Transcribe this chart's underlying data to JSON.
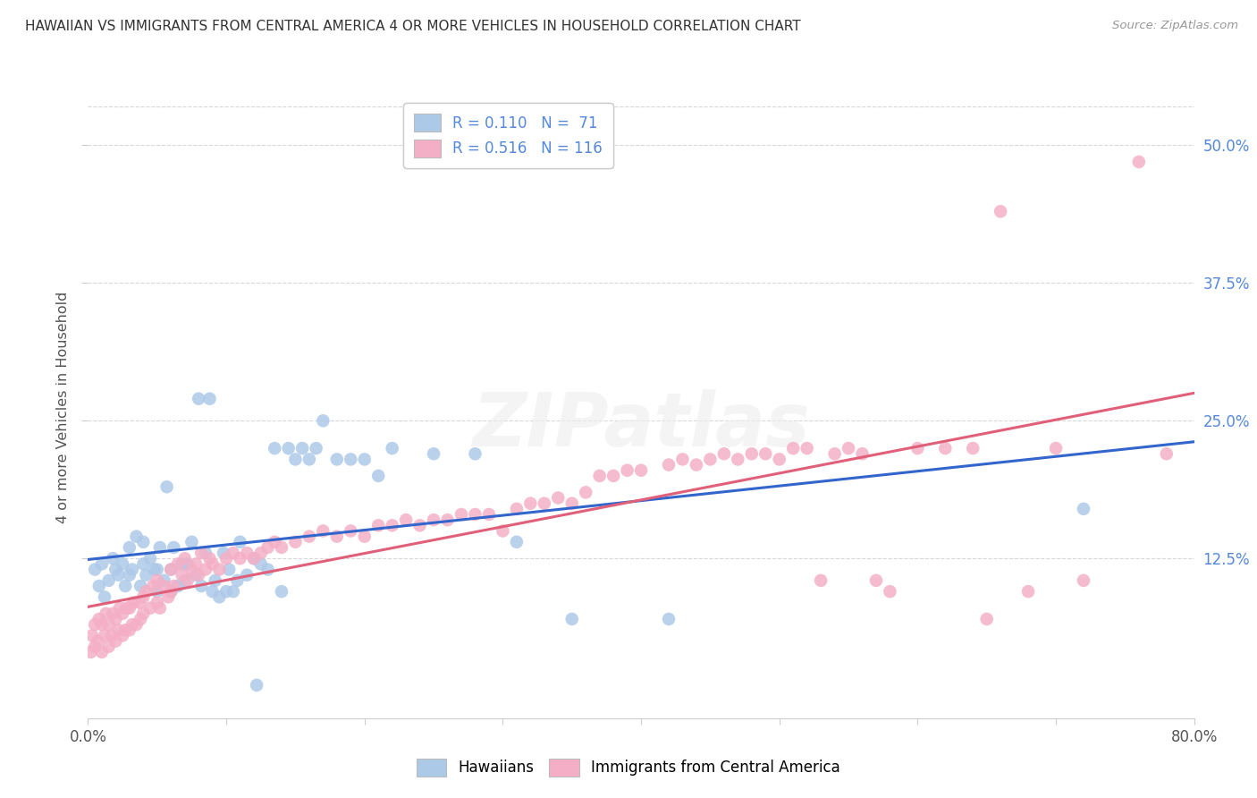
{
  "title": "HAWAIIAN VS IMMIGRANTS FROM CENTRAL AMERICA 4 OR MORE VEHICLES IN HOUSEHOLD CORRELATION CHART",
  "source": "Source: ZipAtlas.com",
  "ylabel": "4 or more Vehicles in Household",
  "xlim": [
    0.0,
    0.8
  ],
  "ylim": [
    -0.02,
    0.545
  ],
  "yticks": [
    0.125,
    0.25,
    0.375,
    0.5
  ],
  "ytick_labels": [
    "12.5%",
    "25.0%",
    "37.5%",
    "50.0%"
  ],
  "xticks": [
    0.0,
    0.1,
    0.2,
    0.3,
    0.4,
    0.5,
    0.6,
    0.7,
    0.8
  ],
  "legend_blue_r": "0.110",
  "legend_blue_n": "71",
  "legend_pink_r": "0.516",
  "legend_pink_n": "116",
  "blue_color": "#adc9e8",
  "pink_color": "#f4afc6",
  "blue_line_color": "#3366cc",
  "pink_line_color": "#e0607a",
  "background_color": "#ffffff",
  "grid_color": "#d8d8d8",
  "hawaiians_x": [
    0.005,
    0.008,
    0.01,
    0.012,
    0.015,
    0.018,
    0.02,
    0.022,
    0.025,
    0.027,
    0.03,
    0.03,
    0.032,
    0.035,
    0.038,
    0.04,
    0.04,
    0.042,
    0.045,
    0.048,
    0.05,
    0.05,
    0.052,
    0.055,
    0.057,
    0.06,
    0.06,
    0.062,
    0.065,
    0.068,
    0.07,
    0.072,
    0.075,
    0.078,
    0.08,
    0.082,
    0.085,
    0.088,
    0.09,
    0.092,
    0.095,
    0.098,
    0.1,
    0.102,
    0.105,
    0.108,
    0.11,
    0.115,
    0.12,
    0.122,
    0.125,
    0.13,
    0.135,
    0.14,
    0.145,
    0.15,
    0.155,
    0.16,
    0.165,
    0.17,
    0.18,
    0.19,
    0.2,
    0.21,
    0.22,
    0.25,
    0.28,
    0.31,
    0.35,
    0.42,
    0.72
  ],
  "hawaiians_y": [
    0.115,
    0.1,
    0.12,
    0.09,
    0.105,
    0.125,
    0.115,
    0.11,
    0.12,
    0.1,
    0.135,
    0.11,
    0.115,
    0.145,
    0.1,
    0.12,
    0.14,
    0.11,
    0.125,
    0.115,
    0.095,
    0.115,
    0.135,
    0.105,
    0.19,
    0.095,
    0.115,
    0.135,
    0.1,
    0.12,
    0.105,
    0.12,
    0.14,
    0.11,
    0.27,
    0.1,
    0.13,
    0.27,
    0.095,
    0.105,
    0.09,
    0.13,
    0.095,
    0.115,
    0.095,
    0.105,
    0.14,
    0.11,
    0.125,
    0.01,
    0.12,
    0.115,
    0.225,
    0.095,
    0.225,
    0.215,
    0.225,
    0.215,
    0.225,
    0.25,
    0.215,
    0.215,
    0.215,
    0.2,
    0.225,
    0.22,
    0.22,
    0.14,
    0.07,
    0.07,
    0.17
  ],
  "immigrants_x": [
    0.002,
    0.003,
    0.005,
    0.005,
    0.007,
    0.008,
    0.01,
    0.01,
    0.012,
    0.013,
    0.015,
    0.015,
    0.017,
    0.018,
    0.02,
    0.02,
    0.022,
    0.023,
    0.025,
    0.025,
    0.027,
    0.028,
    0.03,
    0.03,
    0.032,
    0.033,
    0.035,
    0.037,
    0.038,
    0.04,
    0.04,
    0.042,
    0.045,
    0.047,
    0.05,
    0.05,
    0.052,
    0.055,
    0.058,
    0.06,
    0.06,
    0.062,
    0.065,
    0.068,
    0.07,
    0.072,
    0.075,
    0.078,
    0.08,
    0.082,
    0.085,
    0.088,
    0.09,
    0.095,
    0.1,
    0.105,
    0.11,
    0.115,
    0.12,
    0.125,
    0.13,
    0.135,
    0.14,
    0.15,
    0.16,
    0.17,
    0.18,
    0.19,
    0.2,
    0.21,
    0.22,
    0.23,
    0.24,
    0.25,
    0.26,
    0.27,
    0.28,
    0.29,
    0.3,
    0.31,
    0.32,
    0.33,
    0.34,
    0.35,
    0.36,
    0.37,
    0.38,
    0.39,
    0.4,
    0.42,
    0.43,
    0.44,
    0.45,
    0.46,
    0.47,
    0.48,
    0.49,
    0.5,
    0.51,
    0.52,
    0.53,
    0.54,
    0.55,
    0.56,
    0.57,
    0.58,
    0.6,
    0.62,
    0.64,
    0.65,
    0.66,
    0.68,
    0.7,
    0.72,
    0.76,
    0.78
  ],
  "immigrants_y": [
    0.04,
    0.055,
    0.045,
    0.065,
    0.05,
    0.07,
    0.04,
    0.065,
    0.055,
    0.075,
    0.045,
    0.065,
    0.055,
    0.075,
    0.05,
    0.07,
    0.06,
    0.08,
    0.055,
    0.075,
    0.06,
    0.08,
    0.06,
    0.08,
    0.065,
    0.085,
    0.065,
    0.085,
    0.07,
    0.09,
    0.075,
    0.095,
    0.08,
    0.1,
    0.085,
    0.105,
    0.08,
    0.1,
    0.09,
    0.095,
    0.115,
    0.1,
    0.12,
    0.11,
    0.125,
    0.105,
    0.115,
    0.12,
    0.11,
    0.13,
    0.115,
    0.125,
    0.12,
    0.115,
    0.125,
    0.13,
    0.125,
    0.13,
    0.125,
    0.13,
    0.135,
    0.14,
    0.135,
    0.14,
    0.145,
    0.15,
    0.145,
    0.15,
    0.145,
    0.155,
    0.155,
    0.16,
    0.155,
    0.16,
    0.16,
    0.165,
    0.165,
    0.165,
    0.15,
    0.17,
    0.175,
    0.175,
    0.18,
    0.175,
    0.185,
    0.2,
    0.2,
    0.205,
    0.205,
    0.21,
    0.215,
    0.21,
    0.215,
    0.22,
    0.215,
    0.22,
    0.22,
    0.215,
    0.225,
    0.225,
    0.105,
    0.22,
    0.225,
    0.22,
    0.105,
    0.095,
    0.225,
    0.225,
    0.225,
    0.07,
    0.44,
    0.095,
    0.225,
    0.105,
    0.485,
    0.22
  ]
}
